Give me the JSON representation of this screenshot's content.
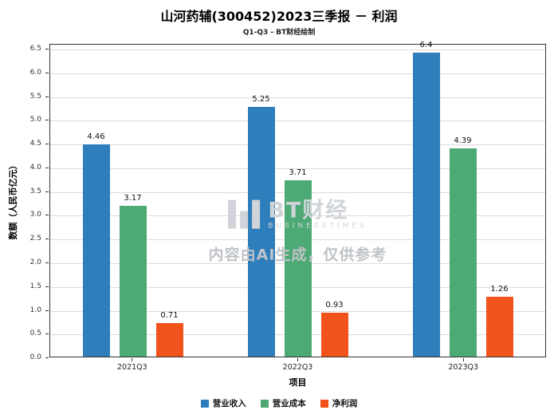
{
  "watermark": {
    "brand": "BT财经",
    "brand_sub": "BUSINESSTIMES",
    "disclaimer": "内容由AI生成，仅供参考"
  },
  "chart_data": {
    "type": "bar",
    "title": "山河药辅(300452)2023三季报 － 利润",
    "subtitle": "Q1-Q3 - BT财经绘制",
    "xlabel": "项目",
    "ylabel": "数额（人民币亿元）",
    "categories": [
      "2021Q3",
      "2022Q3",
      "2023Q3"
    ],
    "series": [
      {
        "name": "营业收入",
        "color": "#2E7EBC",
        "values": [
          4.46,
          5.25,
          6.4
        ]
      },
      {
        "name": "营业成本",
        "color": "#4DAA74",
        "values": [
          3.17,
          3.71,
          4.39
        ]
      },
      {
        "name": "净利润",
        "color": "#F2521B",
        "values": [
          0.71,
          0.93,
          1.26
        ]
      }
    ],
    "ylim": [
      0,
      6.6
    ],
    "yticks": {
      "min": 0,
      "max": 6.5,
      "step": 0.5
    },
    "grid": true,
    "legend_position": "bottom"
  }
}
